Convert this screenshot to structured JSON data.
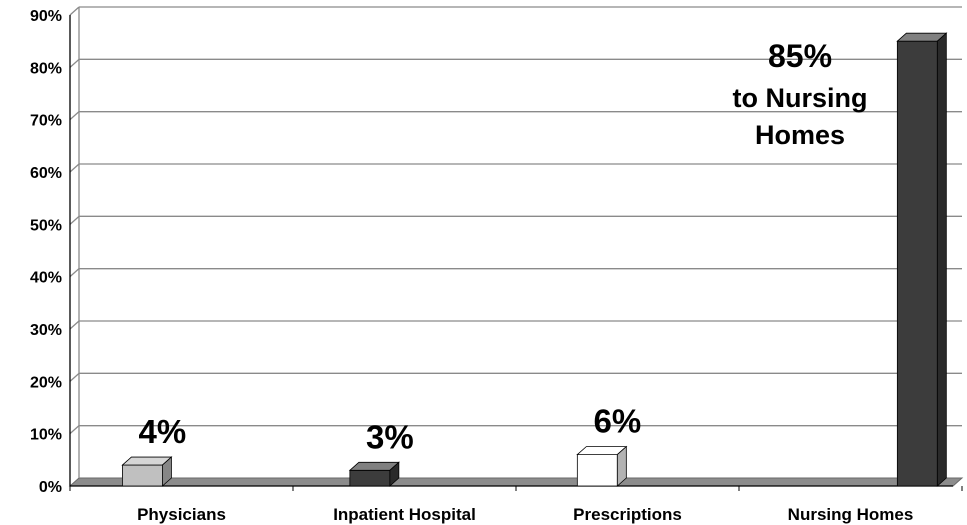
{
  "chart_data": {
    "type": "bar",
    "title": "",
    "xlabel": "",
    "ylabel": "",
    "categories": [
      "Physicians",
      "Inpatient Hospital",
      "Prescriptions",
      "Nursing Homes"
    ],
    "values": [
      4,
      3,
      6,
      85
    ],
    "data_labels": [
      "4%",
      "3%",
      "6%",
      ""
    ],
    "ylim": [
      0,
      90
    ],
    "y_ticks": [
      0,
      10,
      20,
      30,
      40,
      50,
      60,
      70,
      80,
      90
    ],
    "y_tick_labels": [
      "0%",
      "10%",
      "20%",
      "30%",
      "40%",
      "50%",
      "60%",
      "70%",
      "80%",
      "90%"
    ],
    "grid": true,
    "legend": "none",
    "bar_colors": [
      "#c0c0c0",
      "#3c3c3c",
      "#ffffff",
      "#3c3c3c"
    ],
    "annotation": {
      "value_text": "85%",
      "line1": "to Nursing",
      "line2": "Homes"
    }
  }
}
